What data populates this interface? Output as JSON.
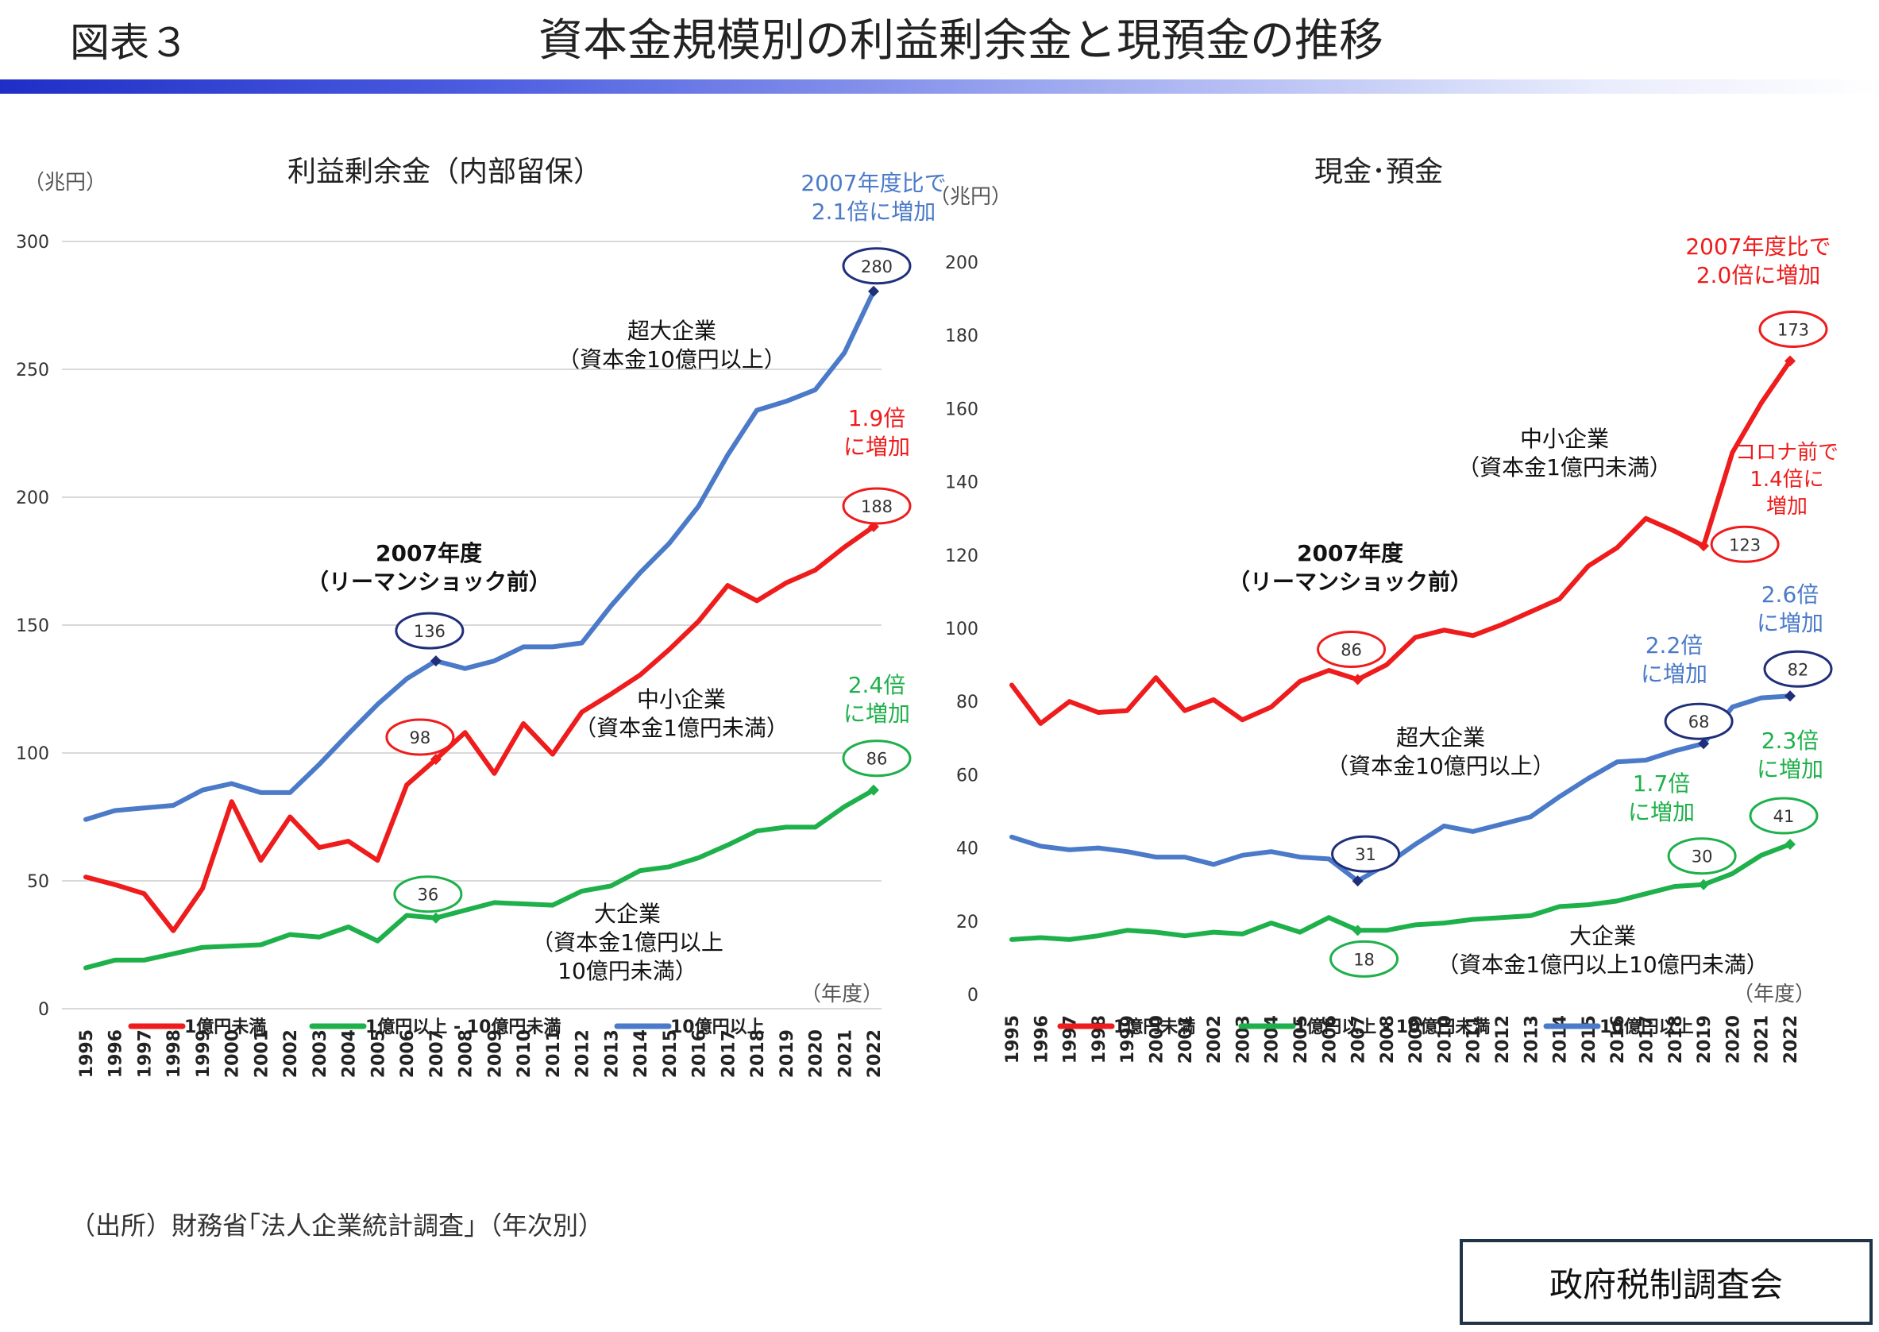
{
  "header": {
    "figure_label": "図表３",
    "title": "資本金規模別の利益剰余金と現預金の推移"
  },
  "footer": {
    "source": "（出所）財務省｢法人企業統計調査｣（年次別）",
    "organization": "政府税制調査会"
  },
  "colors": {
    "red": "#ee1c1c",
    "green": "#1eb04a",
    "blue": "#4a7ac8",
    "navy": "#1f2f7a",
    "grid": "#d9d9d9",
    "axis_text": "#333333"
  },
  "chart_data": [
    {
      "type": "line",
      "title": "利益剰余金（内部留保）",
      "unit_label": "（兆円）",
      "xlabel": "（年度）",
      "ylim": [
        0,
        300
      ],
      "yticks": [
        0,
        50,
        100,
        150,
        200,
        250,
        300
      ],
      "grid": true,
      "legend_position": "bottom",
      "x": [
        "1995",
        "1996",
        "1997",
        "1998",
        "1999",
        "2000",
        "2001",
        "2002",
        "2003",
        "2004",
        "2005",
        "2006",
        "2007",
        "2008",
        "2009",
        "2010",
        "2011",
        "2012",
        "2013",
        "2014",
        "2015",
        "2016",
        "2017",
        "2018",
        "2019",
        "2020",
        "2021",
        "2022"
      ],
      "series": [
        {
          "name": "1億円未満",
          "color": "red",
          "values": [
            51.5,
            48.5,
            45,
            30.5,
            47,
            81,
            58,
            75,
            63,
            65.5,
            58,
            87.5,
            97.5,
            108,
            92,
            111.5,
            99.5,
            116,
            123,
            130.5,
            140.5,
            151.5,
            165.5,
            159.5,
            166.5,
            171.5,
            180.5,
            188.5
          ]
        },
        {
          "name": "1億円以上 - 10億円未満",
          "color": "green",
          "values": [
            16,
            19,
            19,
            21.5,
            24,
            24.5,
            25,
            29,
            28,
            32,
            26.5,
            36.5,
            35.5,
            38.5,
            41.5,
            41,
            40.5,
            46,
            48,
            54,
            55.5,
            59,
            64,
            69.5,
            71,
            71,
            79,
            85.5
          ]
        },
        {
          "name": "10億円以上",
          "color": "blue",
          "values": [
            74,
            77.5,
            78.5,
            79.5,
            85.5,
            88,
            84.5,
            84.5,
            95.5,
            107.5,
            119,
            129,
            136,
            133,
            136,
            141.5,
            141.5,
            143,
            157.5,
            170.5,
            182,
            196.5,
            216.5,
            234,
            237.5,
            242,
            256.5,
            280.5
          ]
        }
      ],
      "callouts": [
        {
          "text": "136",
          "x": "2007",
          "y": 136,
          "color": "navy"
        },
        {
          "text": "98",
          "x": "2007",
          "y": 97.5,
          "color": "red"
        },
        {
          "text": "36",
          "x": "2007",
          "y": 35.5,
          "color": "green"
        },
        {
          "text": "280",
          "x": "2022",
          "y": 280.5,
          "color": "navy"
        },
        {
          "text": "188",
          "x": "2022",
          "y": 188.5,
          "color": "red"
        },
        {
          "text": "86",
          "x": "2022",
          "y": 85.5,
          "color": "green"
        }
      ],
      "annotations": [
        {
          "lines": [
            "2007年度比で",
            "2.1倍に増加"
          ],
          "color": "blue"
        },
        {
          "lines": [
            "1.9倍",
            "に増加"
          ],
          "color": "red"
        },
        {
          "lines": [
            "2.4倍",
            "に増加"
          ],
          "color": "green"
        },
        {
          "lines": [
            "2007年度",
            "（リーマンショック前）"
          ],
          "color": "black",
          "bold": true
        },
        {
          "lines": [
            "超大企業",
            "（資本金10億円以上）"
          ],
          "color": "black"
        },
        {
          "lines": [
            "中小企業",
            "（資本金1億円未満）"
          ],
          "color": "black"
        },
        {
          "lines": [
            "大企業",
            "（資本金1億円以上",
            "10億円未満）"
          ],
          "color": "black"
        }
      ]
    },
    {
      "type": "line",
      "title": "現金･預金",
      "unit_label": "（兆円）",
      "xlabel": "（年度）",
      "ylim": [
        0,
        200
      ],
      "yticks": [
        0,
        20,
        40,
        60,
        80,
        100,
        120,
        140,
        160,
        180,
        200
      ],
      "grid": false,
      "legend_position": "bottom",
      "x": [
        "1995",
        "1996",
        "1997",
        "1998",
        "1999",
        "2000",
        "2001",
        "2002",
        "2003",
        "2004",
        "2005",
        "2006",
        "2007",
        "2008",
        "2009",
        "2010",
        "2011",
        "2012",
        "2013",
        "2014",
        "2015",
        "2016",
        "2017",
        "2018",
        "2019",
        "2020",
        "2021",
        "2022"
      ],
      "series": [
        {
          "name": "1億円未満",
          "color": "red",
          "values": [
            84.5,
            74,
            80,
            77,
            77.5,
            86.5,
            77.5,
            80.5,
            75,
            78.5,
            85.5,
            88.5,
            86,
            90,
            97.5,
            99.5,
            98,
            101,
            104.5,
            108,
            117,
            122,
            130,
            126.5,
            122.5,
            148,
            161.5,
            173
          ]
        },
        {
          "name": "1億円以上 - 10億円未満",
          "color": "green",
          "values": [
            15,
            15.5,
            15,
            16,
            17.5,
            17,
            16,
            17,
            16.5,
            19.5,
            17,
            21,
            17.5,
            17.5,
            19,
            19.5,
            20.5,
            21,
            21.5,
            24,
            24.5,
            25.5,
            27.5,
            29.5,
            30,
            33,
            38,
            41
          ]
        },
        {
          "name": "10億円以上",
          "color": "blue",
          "values": [
            43,
            40.5,
            39.5,
            40,
            39,
            37.5,
            37.5,
            35.5,
            38,
            39,
            37.5,
            37,
            31,
            35.5,
            41,
            46,
            44.5,
            46.5,
            48.5,
            54,
            59,
            63.5,
            64,
            66.5,
            68.5,
            78.5,
            81,
            81.5
          ]
        }
      ],
      "callouts": [
        {
          "text": "86",
          "x": "2007",
          "y": 86,
          "color": "red"
        },
        {
          "text": "31",
          "x": "2007",
          "y": 31,
          "color": "navy"
        },
        {
          "text": "18",
          "x": "2007",
          "y": 17.5,
          "color": "green"
        },
        {
          "text": "68",
          "x": "2019",
          "y": 68.5,
          "color": "navy"
        },
        {
          "text": "30",
          "x": "2019",
          "y": 30,
          "color": "green"
        },
        {
          "text": "123",
          "x": "2019",
          "y": 122.5,
          "color": "red"
        },
        {
          "text": "173",
          "x": "2022",
          "y": 173,
          "color": "red"
        },
        {
          "text": "82",
          "x": "2022",
          "y": 81.5,
          "color": "navy"
        },
        {
          "text": "41",
          "x": "2022",
          "y": 41,
          "color": "green"
        }
      ],
      "annotations": [
        {
          "lines": [
            "2007年度比で",
            "2.0倍に増加"
          ],
          "color": "red"
        },
        {
          "lines": [
            "コロナ前で",
            "1.4倍に",
            "増加"
          ],
          "color": "red"
        },
        {
          "lines": [
            "2.6倍",
            "に増加"
          ],
          "color": "blue"
        },
        {
          "lines": [
            "2.2倍",
            "に増加"
          ],
          "color": "blue"
        },
        {
          "lines": [
            "2.3倍",
            "に増加"
          ],
          "color": "green"
        },
        {
          "lines": [
            "1.7倍",
            "に増加"
          ],
          "color": "green"
        },
        {
          "lines": [
            "2007年度",
            "（リーマンショック前）"
          ],
          "color": "black",
          "bold": true
        },
        {
          "lines": [
            "中小企業",
            "（資本金1億円未満）"
          ],
          "color": "black"
        },
        {
          "lines": [
            "超大企業",
            "（資本金10億円以上）"
          ],
          "color": "black"
        },
        {
          "lines": [
            "大企業",
            "（資本金1億円以上10億円未満）"
          ],
          "color": "black"
        }
      ]
    }
  ]
}
